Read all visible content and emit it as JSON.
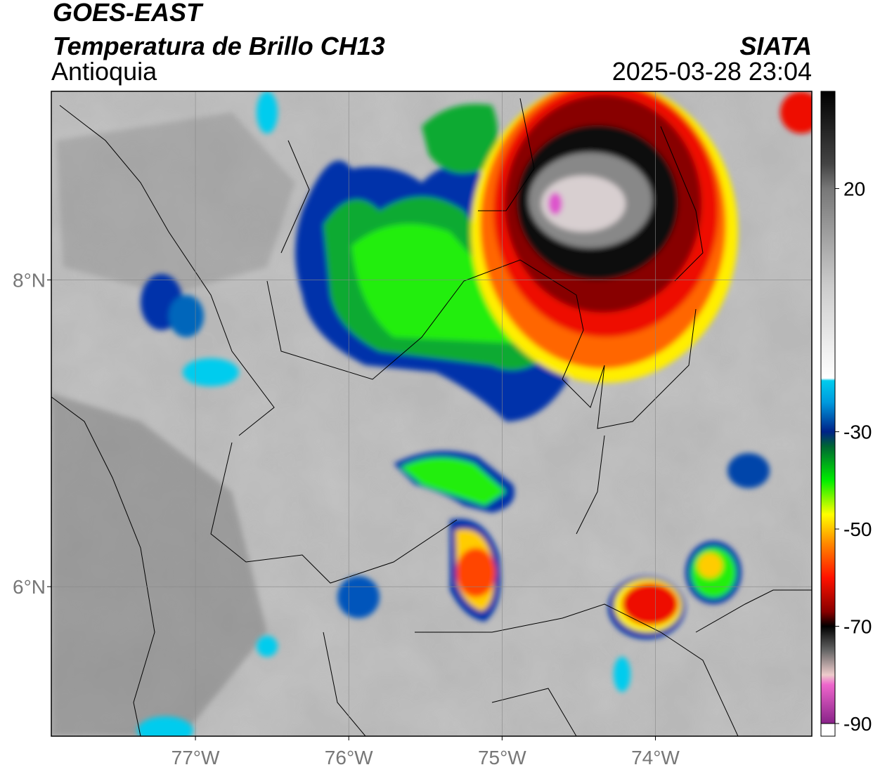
{
  "header": {
    "title": "GOES-EAST",
    "subtitle": "Temperatura de Brillo CH13",
    "region": "Antioquia",
    "source": "SIATA",
    "datetime": "2025-03-28 23:04"
  },
  "map": {
    "xlim": [
      -77.94,
      -72.98
    ],
    "ylim": [
      5.025,
      9.23
    ],
    "xticks": [
      {
        "value": -77,
        "label": "77°W"
      },
      {
        "value": -76,
        "label": "76°W"
      },
      {
        "value": -75,
        "label": "75°W"
      },
      {
        "value": -74,
        "label": "74°W"
      }
    ],
    "yticks": [
      {
        "value": 6,
        "label": "6°N"
      },
      {
        "value": 8,
        "label": "8°N"
      }
    ],
    "grid": true
  },
  "colorbar": {
    "lim": [
      -90,
      40
    ],
    "ticks": [
      20,
      -30,
      -50,
      -70,
      -90
    ],
    "colorscale": [
      [
        40,
        "#000000"
      ],
      [
        25,
        "#444444"
      ],
      [
        20,
        "#777777"
      ],
      [
        0,
        "#cccccc"
      ],
      [
        -19,
        "#ffffff"
      ],
      [
        -19.5,
        "#00ccee"
      ],
      [
        -24,
        "#0099dd"
      ],
      [
        -30,
        "#002288"
      ],
      [
        -33,
        "#006633"
      ],
      [
        -40,
        "#00ee00"
      ],
      [
        -47,
        "#ffff00"
      ],
      [
        -53,
        "#ff8800"
      ],
      [
        -60,
        "#ff1100"
      ],
      [
        -67,
        "#880000"
      ],
      [
        -70,
        "#000000"
      ],
      [
        -75,
        "#666666"
      ],
      [
        -80,
        "#eecccc"
      ],
      [
        -82,
        "#ee66cc"
      ],
      [
        -90,
        "#882288"
      ]
    ]
  }
}
